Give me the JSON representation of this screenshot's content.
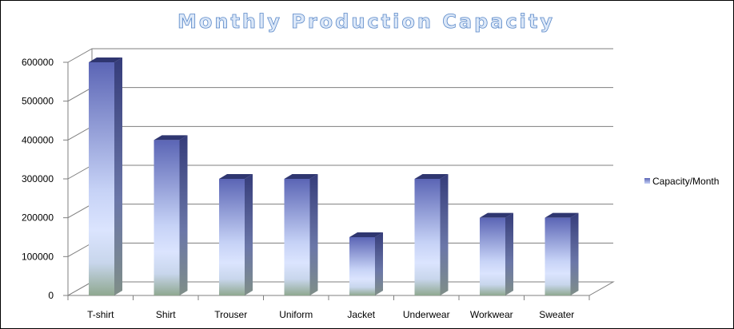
{
  "chart_data": {
    "type": "bar",
    "title": "Monthly Production Capacity",
    "xlabel": "",
    "ylabel": "",
    "categories": [
      "T-shirt",
      "Shirt",
      "Trouser",
      "Uniform",
      "Jacket",
      "Underwear",
      "Workwear",
      "Sweater"
    ],
    "series": [
      {
        "name": "Capacity/Month",
        "values": [
          600000,
          400000,
          300000,
          300000,
          150000,
          300000,
          200000,
          200000
        ]
      }
    ],
    "ylim": [
      0,
      600000
    ],
    "yticks": [
      "0",
      "100000",
      "200000",
      "300000",
      "400000",
      "500000",
      "600000"
    ],
    "grid": true,
    "legend_position": "right",
    "style": "3d-column",
    "colors": {
      "bar_top": "#5b65b5",
      "bar_mid": "#d4defc",
      "bar_base": "#8fa890",
      "bar_side": "#3b4387",
      "grid": "#7f7f7f",
      "title_fill": "#dce8f8",
      "title_stroke": "#5a88c8"
    }
  }
}
